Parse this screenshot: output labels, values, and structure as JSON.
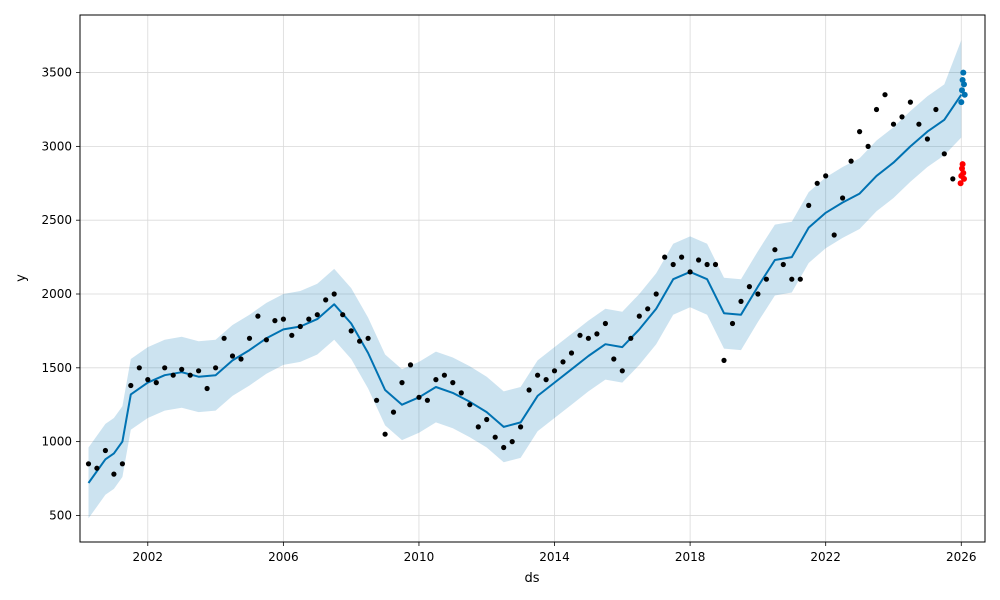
{
  "chart_data": {
    "type": "scatter",
    "title": "",
    "xlabel": "ds",
    "ylabel": "y",
    "xlim": [
      2000.0,
      2026.7
    ],
    "ylim": [
      320,
      3890
    ],
    "grid": true,
    "x_ticks": [
      2002,
      2006,
      2010,
      2014,
      2018,
      2022,
      2026
    ],
    "y_ticks": [
      500,
      1000,
      1500,
      2000,
      2500,
      3000,
      3500
    ],
    "x_tick_labels": [
      "2002",
      "2006",
      "2010",
      "2014",
      "2018",
      "2022",
      "2026"
    ],
    "y_tick_labels": [
      "500",
      "1000",
      "1500",
      "2000",
      "2500",
      "3000",
      "3500"
    ],
    "colors": {
      "observed": "#000000",
      "forecast": "#0072B2",
      "interval": "#0072B2",
      "forecast_points": "#0072B2",
      "actual_points": "#ff0000"
    },
    "series": [
      {
        "type": "scatter",
        "x": [
          2000.25,
          2000.5,
          2000.75,
          2001.0,
          2001.25,
          2001.5,
          2001.75,
          2002.0,
          2002.25,
          2002.5,
          2002.75,
          2003.0,
          2003.25,
          2003.5,
          2003.75,
          2004.0,
          2004.25,
          2004.5,
          2004.75,
          2005.0,
          2005.25,
          2005.5,
          2005.75,
          2006.0,
          2006.25,
          2006.5,
          2006.75,
          2007.0,
          2007.25,
          2007.5,
          2007.75,
          2008.0,
          2008.25,
          2008.5,
          2008.75,
          2009.0,
          2009.25,
          2009.5,
          2009.75,
          2010.0,
          2010.25,
          2010.5,
          2010.75,
          2011.0,
          2011.25,
          2011.5,
          2011.75,
          2012.0,
          2012.25,
          2012.5,
          2012.75,
          2013.0,
          2013.25,
          2013.5,
          2013.75,
          2014.0,
          2014.25,
          2014.5,
          2014.75,
          2015.0,
          2015.25,
          2015.5,
          2015.75,
          2016.0,
          2016.25,
          2016.5,
          2016.75,
          2017.0,
          2017.25,
          2017.5,
          2017.75,
          2018.0,
          2018.25,
          2018.5,
          2018.75,
          2019.0,
          2019.25,
          2019.5,
          2019.75,
          2020.0,
          2020.25,
          2020.5,
          2020.75,
          2021.0,
          2021.25,
          2021.5,
          2021.75,
          2022.0,
          2022.25,
          2022.5,
          2022.75,
          2023.0,
          2023.25,
          2023.5,
          2023.75,
          2024.0,
          2024.25,
          2024.5,
          2024.75,
          2025.0,
          2025.25,
          2025.5,
          2025.75
        ],
        "values": [
          850,
          820,
          940,
          780,
          850,
          1380,
          1500,
          1420,
          1400,
          1500,
          1450,
          1490,
          1450,
          1480,
          1360,
          1500,
          1700,
          1580,
          1560,
          1700,
          1850,
          1690,
          1820,
          1830,
          1720,
          1780,
          1830,
          1860,
          1960,
          2000,
          1860,
          1750,
          1680,
          1700,
          1280,
          1050,
          1200,
          1400,
          1520,
          1300,
          1280,
          1420,
          1450,
          1400,
          1330,
          1250,
          1100,
          1150,
          1030,
          960,
          1000,
          1100,
          1350,
          1450,
          1420,
          1480,
          1540,
          1600,
          1720,
          1700,
          1730,
          1800,
          1560,
          1480,
          1700,
          1850,
          1900,
          2000,
          2250,
          2200,
          2250,
          2150,
          2230,
          2200,
          2200,
          1550,
          1800,
          1950,
          2050,
          2000,
          2100,
          2300,
          2200,
          2100,
          2100,
          2600,
          2750,
          2800,
          2400,
          2650,
          2900,
          3100,
          3000,
          3250,
          3350,
          3150,
          3200,
          3300,
          3150,
          3050,
          3250,
          2950,
          2780
        ]
      },
      {
        "type": "line",
        "x": [
          2000.25,
          2000.75,
          2001.0,
          2001.25,
          2001.5,
          2002.0,
          2002.5,
          2003.0,
          2003.5,
          2004.0,
          2004.5,
          2005.0,
          2005.5,
          2006.0,
          2006.5,
          2007.0,
          2007.5,
          2008.0,
          2008.5,
          2009.0,
          2009.5,
          2010.0,
          2010.5,
          2011.0,
          2011.5,
          2012.0,
          2012.5,
          2013.0,
          2013.5,
          2014.0,
          2014.5,
          2015.0,
          2015.5,
          2016.0,
          2016.5,
          2017.0,
          2017.5,
          2018.0,
          2018.5,
          2019.0,
          2019.5,
          2020.0,
          2020.5,
          2021.0,
          2021.5,
          2022.0,
          2022.5,
          2023.0,
          2023.5,
          2024.0,
          2024.5,
          2025.0,
          2025.5,
          2026.0
        ],
        "values": [
          720,
          880,
          920,
          1000,
          1320,
          1400,
          1450,
          1470,
          1440,
          1450,
          1550,
          1620,
          1700,
          1760,
          1780,
          1830,
          1930,
          1800,
          1600,
          1350,
          1250,
          1300,
          1370,
          1330,
          1270,
          1200,
          1100,
          1130,
          1310,
          1400,
          1490,
          1580,
          1660,
          1640,
          1760,
          1900,
          2100,
          2150,
          2100,
          1870,
          1860,
          2050,
          2230,
          2250,
          2450,
          2550,
          2620,
          2680,
          2800,
          2890,
          3000,
          3100,
          3180,
          3350
        ]
      },
      {
        "type": "area",
        "x": [
          2000.25,
          2000.75,
          2001.0,
          2001.25,
          2001.5,
          2002.0,
          2002.5,
          2003.0,
          2003.5,
          2004.0,
          2004.5,
          2005.0,
          2005.5,
          2006.0,
          2006.5,
          2007.0,
          2007.5,
          2008.0,
          2008.5,
          2009.0,
          2009.5,
          2010.0,
          2010.5,
          2011.0,
          2011.5,
          2012.0,
          2012.5,
          2013.0,
          2013.5,
          2014.0,
          2014.5,
          2015.0,
          2015.5,
          2016.0,
          2016.5,
          2017.0,
          2017.5,
          2018.0,
          2018.5,
          2019.0,
          2019.5,
          2020.0,
          2020.5,
          2021.0,
          2021.5,
          2022.0,
          2022.5,
          2023.0,
          2023.5,
          2024.0,
          2024.5,
          2025.0,
          2025.5,
          2026.0
        ],
        "upper": [
          960,
          1120,
          1160,
          1240,
          1560,
          1640,
          1690,
          1710,
          1680,
          1690,
          1790,
          1860,
          1940,
          2000,
          2020,
          2070,
          2170,
          2040,
          1840,
          1590,
          1490,
          1540,
          1610,
          1570,
          1510,
          1440,
          1340,
          1370,
          1550,
          1640,
          1730,
          1820,
          1900,
          1880,
          2000,
          2140,
          2340,
          2390,
          2340,
          2110,
          2100,
          2290,
          2470,
          2490,
          2690,
          2790,
          2860,
          2920,
          3040,
          3130,
          3240,
          3340,
          3420,
          3720
        ],
        "lower": [
          480,
          640,
          680,
          760,
          1080,
          1160,
          1210,
          1230,
          1200,
          1210,
          1310,
          1380,
          1460,
          1520,
          1540,
          1590,
          1690,
          1560,
          1360,
          1110,
          1010,
          1060,
          1130,
          1090,
          1030,
          960,
          860,
          890,
          1070,
          1160,
          1250,
          1340,
          1420,
          1400,
          1520,
          1660,
          1860,
          1910,
          1860,
          1630,
          1620,
          1810,
          1990,
          2010,
          2210,
          2310,
          2380,
          2440,
          2560,
          2650,
          2760,
          2860,
          2940,
          3060
        ]
      },
      {
        "type": "scatter",
        "x": [
          2026.0,
          2026.02,
          2026.04,
          2026.06,
          2026.08,
          2026.1
        ],
        "values": [
          3300,
          3380,
          3450,
          3500,
          3420,
          3350
        ]
      },
      {
        "type": "scatter",
        "x": [
          2025.98,
          2026.0,
          2026.02,
          2026.04,
          2026.06,
          2026.08
        ],
        "values": [
          2750,
          2800,
          2850,
          2880,
          2820,
          2780
        ]
      }
    ]
  }
}
